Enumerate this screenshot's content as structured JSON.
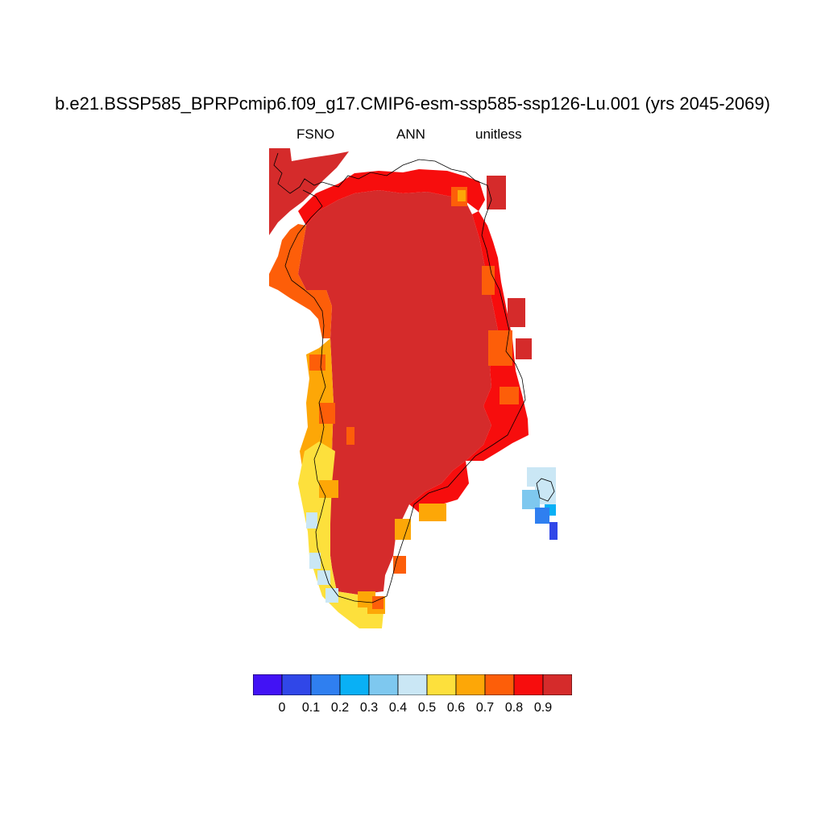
{
  "title": "b.e21.BSSP585_BPRPcmip6.f09_g17.CMIP6-esm-ssp585-ssp126-Lu.001 (yrs 2045-2069)",
  "subtitle": {
    "variable": "FSNO",
    "season": "ANN",
    "units": "unitless"
  },
  "colors": {
    "b0": "#4212f5",
    "b1": "#3047e8",
    "b2": "#2f7ff0",
    "b3": "#09b0f5",
    "b4": "#7ec8ef",
    "b5": "#cae7f5",
    "b6": "#fde03c",
    "b7": "#fda707",
    "b8": "#fd5e09",
    "b9": "#f70d0d",
    "b10": "#d52b2b"
  },
  "colorbar": {
    "colors": [
      "#4212f5",
      "#3047e8",
      "#2f7ff0",
      "#09b0f5",
      "#7ec8ef",
      "#cae7f5",
      "#fde03c",
      "#fda707",
      "#fd5e09",
      "#f70d0d",
      "#d52b2b"
    ],
    "labels": [
      "0",
      "0.1",
      "0.2",
      "0.3",
      "0.4",
      "0.5",
      "0.6",
      "0.7",
      "0.8",
      "0.9"
    ]
  },
  "map_data": {
    "region": "Greenland",
    "field": "FSNO",
    "statistic": "annual mean",
    "value_range": [
      0,
      1
    ],
    "dominant_value": "> 0.9 (ice sheet interior)",
    "coastal_values": "0.4 - 0.9 (southwest coast lowest)",
    "iceland_values": "0.1 - 0.5"
  }
}
